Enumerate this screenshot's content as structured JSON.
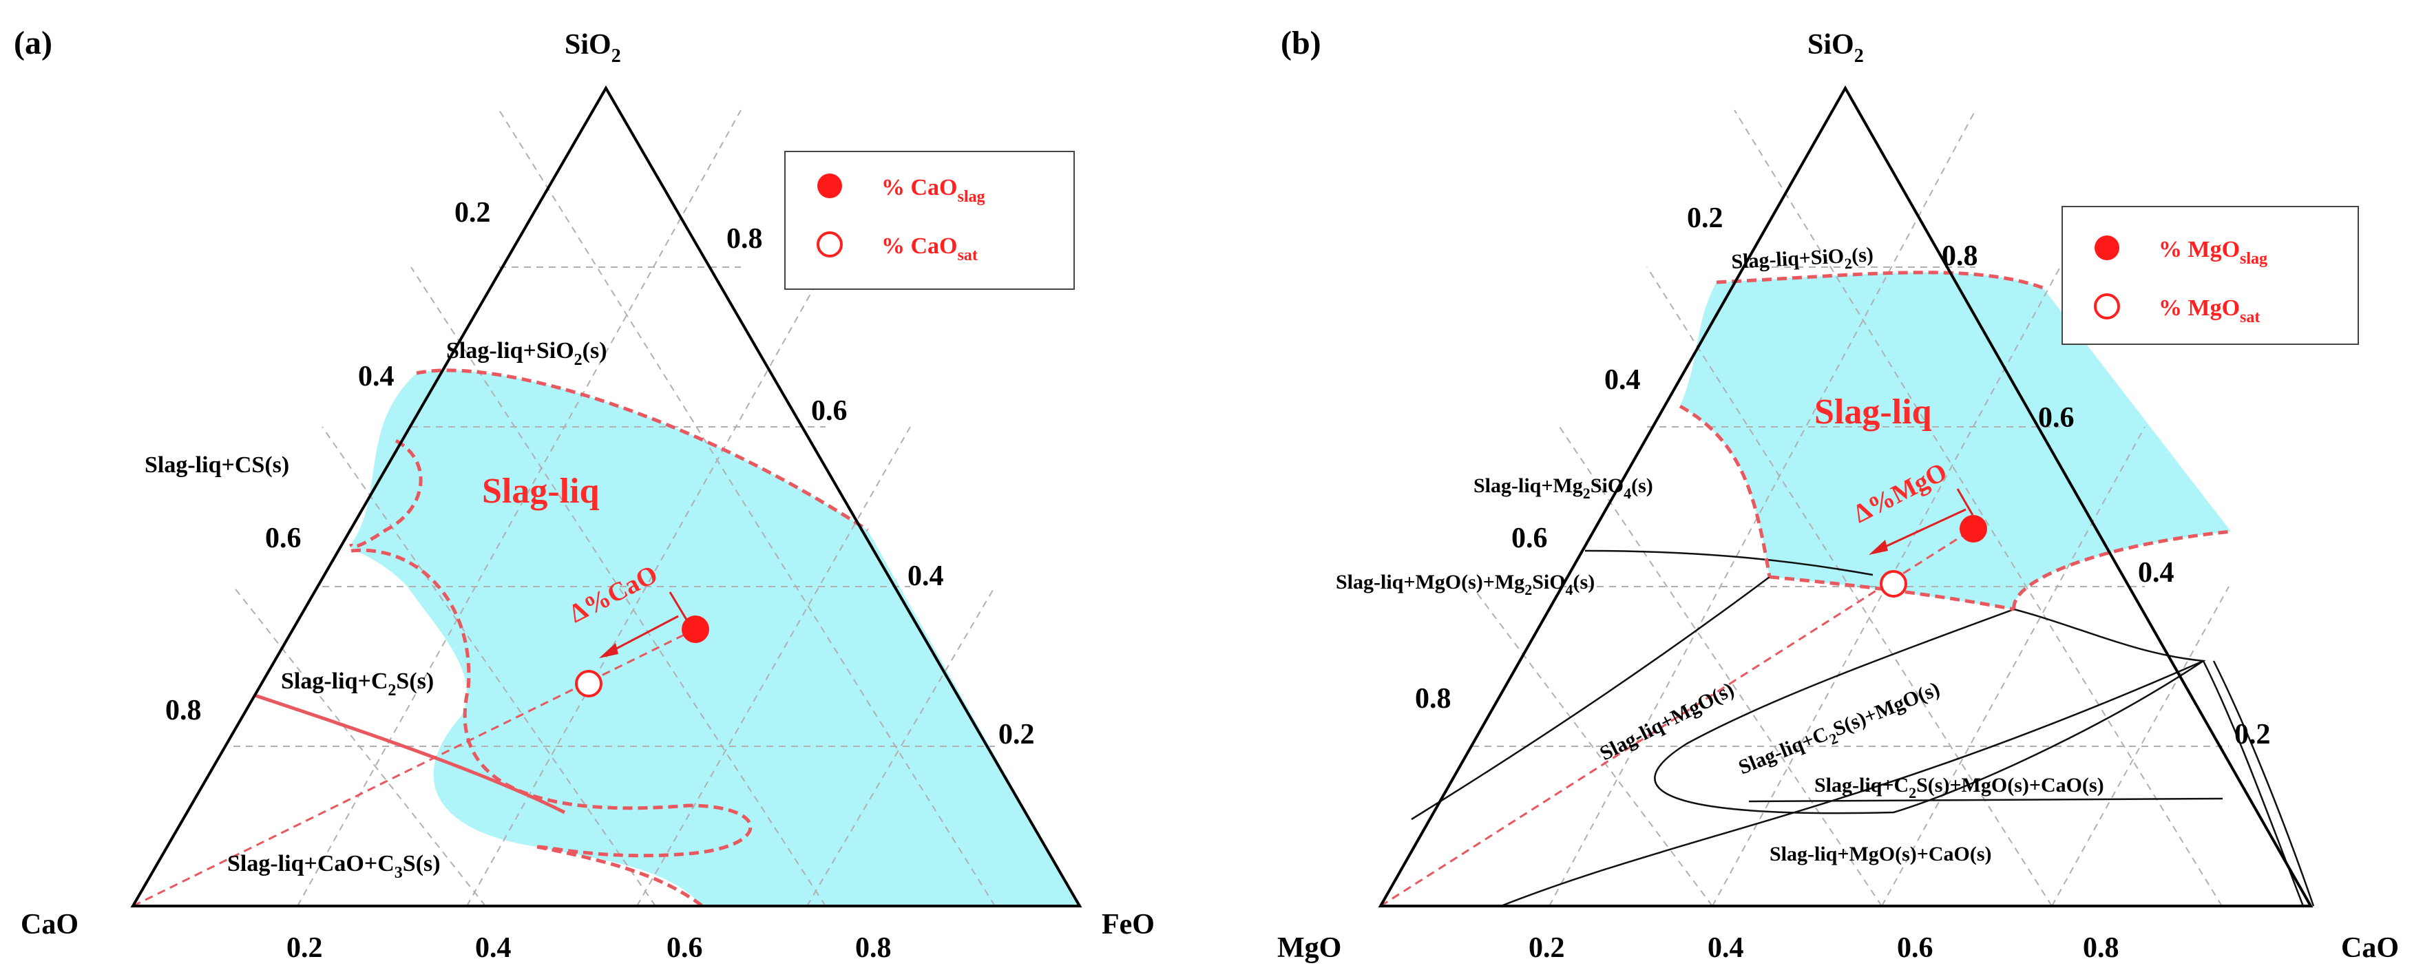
{
  "panel_a": {
    "label": "(a)",
    "apex_top": "SiO",
    "apex_top_sub": "2",
    "apex_left": "CaO",
    "apex_right": "FeO",
    "left_ticks": [
      "0.2",
      "0.4",
      "0.6",
      "0.8"
    ],
    "right_ticks": [
      "0.8",
      "0.6",
      "0.4",
      "0.2"
    ],
    "bottom_ticks": [
      "0.2",
      "0.4",
      "0.6",
      "0.8"
    ],
    "regions": {
      "sio2": {
        "a": "Slag-liq+SiO",
        "sub": "2",
        "b": "(s)"
      },
      "cs": "Slag-liq+CS(s)",
      "liq": "Slag-liq",
      "c2s": {
        "a": "Slag-liq+C",
        "sub": "2",
        "b": "S(s)"
      },
      "c3s": {
        "a": "Slag-liq+CaO+C",
        "sub": "3",
        "b": "S(s)"
      }
    },
    "delta": "Δ%CaO",
    "legend": [
      {
        "pre": "% CaO",
        "sub": "slag",
        "marker": "filled"
      },
      {
        "pre": "% CaO",
        "sub": "sat",
        "marker": "open"
      }
    ]
  },
  "panel_b": {
    "label": "(b)",
    "apex_top": "SiO",
    "apex_top_sub": "2",
    "apex_left": "MgO",
    "apex_right": "CaO",
    "left_ticks": [
      "0.2",
      "0.4",
      "0.6",
      "0.8"
    ],
    "right_ticks": [
      "0.8",
      "0.6",
      "0.4",
      "0.2"
    ],
    "bottom_ticks": [
      "0.2",
      "0.4",
      "0.6",
      "0.8"
    ],
    "regions": {
      "sio2": {
        "a": "Slag-liq+SiO",
        "sub": "2",
        "b": "(s)"
      },
      "liq": "Slag-liq",
      "mg2sio4": {
        "a": "Slag-liq+Mg",
        "sub": "2",
        "b": "SiO",
        "sub2": "4",
        "c": "(s)"
      },
      "mgo_mg2sio4": {
        "a": "Slag-liq+MgO(s)+Mg",
        "sub": "2",
        "b": "SiO",
        "sub2": "4",
        "c": "(s)"
      },
      "mgo": "Slag-liq+MgO(s)",
      "c2s_mgo": {
        "a": "Slag-liq+C",
        "sub": "2",
        "b": "S(s)+MgO(s)"
      },
      "c2s_mgo_cao": {
        "a": "Slag-liq+C",
        "sub": "2",
        "b": "S(s)+MgO(s)+CaO(s)"
      },
      "mgo_cao": "Slag-liq+MgO(s)+CaO(s)"
    },
    "delta": "Δ%MgO",
    "legend": [
      {
        "pre": "% MgO",
        "sub": "slag",
        "marker": "filled"
      },
      {
        "pre": "% MgO",
        "sub": "sat",
        "marker": "open"
      }
    ]
  },
  "colors": {
    "liquid_fill": "#aef4f8",
    "boundary": "#e8585e",
    "accent_red": "#ff2020",
    "grid": "#b0b0b0"
  }
}
